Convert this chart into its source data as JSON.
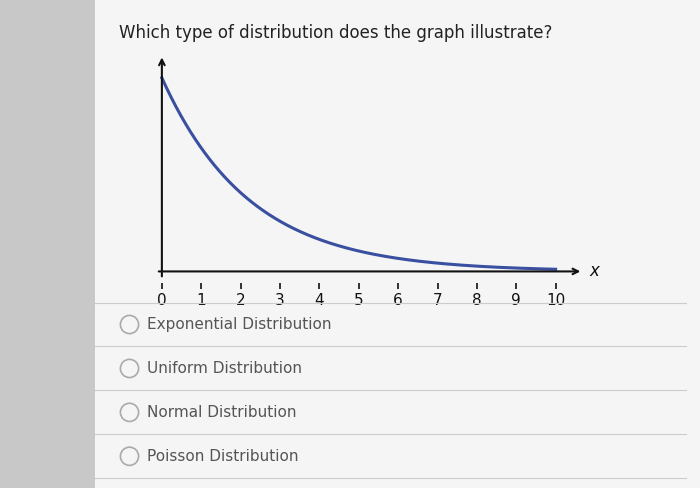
{
  "title": "Which type of distribution does the graph illustrate?",
  "title_fontsize": 12,
  "title_color": "#222222",
  "page_bg_color": "#d8d8d8",
  "card_bg_color": "#f5f5f5",
  "plot_bg_color": "#f5f5f5",
  "left_bar_color": "#c8c8c8",
  "curve_color": "#3a4fa0",
  "curve_linewidth": 2.2,
  "lambda": 0.45,
  "x_label": "x",
  "x_ticks": [
    0,
    1,
    2,
    3,
    4,
    5,
    6,
    7,
    8,
    9,
    10
  ],
  "axis_color": "#111111",
  "tick_fontsize": 11,
  "choices": [
    "Exponential Distribution",
    "Uniform Distribution",
    "Normal Distribution",
    "Poisson Distribution"
  ],
  "choices_fontsize": 11,
  "choices_color": "#555555",
  "circle_edge_color": "#aaaaaa",
  "divider_color": "#cccccc"
}
